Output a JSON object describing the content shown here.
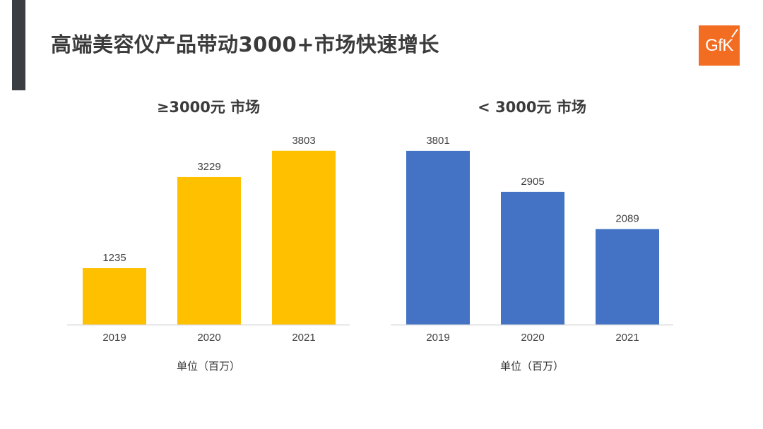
{
  "page": {
    "title": "高端美容仪产品带动3000+市场快速增长",
    "logo_text": "GfK"
  },
  "colors": {
    "accent_bar": "#3a3d42",
    "logo": "#f26c21",
    "series_high": "#ffc000",
    "series_low": "#4472c4"
  },
  "chart_data": [
    {
      "type": "bar",
      "title": "≥3000元 市场",
      "categories": [
        "2019",
        "2020",
        "2021"
      ],
      "values": [
        1235,
        3229,
        3803
      ],
      "data_labels": [
        "1235",
        "3229",
        "3803"
      ],
      "color": "#ffc000",
      "unit_label": "单位（百万）",
      "ylim": [
        0,
        4000
      ],
      "grid": false,
      "legend": "none"
    },
    {
      "type": "bar",
      "title": "< 3000元 市场",
      "categories": [
        "2019",
        "2020",
        "2021"
      ],
      "values": [
        3801,
        2905,
        2089
      ],
      "data_labels": [
        "3801",
        "2905",
        "2089"
      ],
      "color": "#4472c4",
      "unit_label": "单位（百万）",
      "ylim": [
        0,
        4000
      ],
      "grid": false,
      "legend": "none"
    }
  ]
}
